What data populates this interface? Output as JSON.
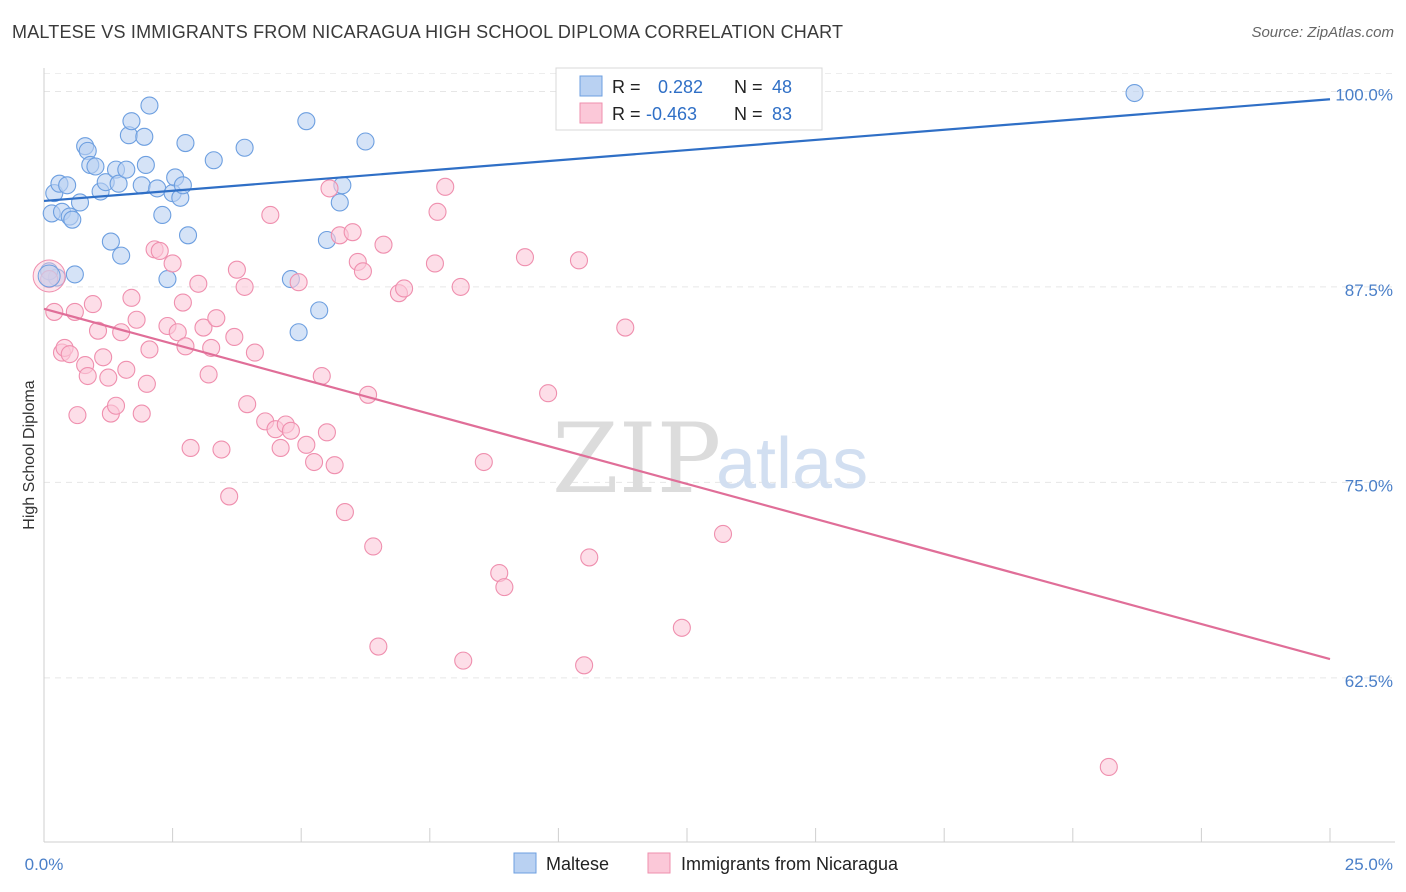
{
  "title": "MALTESE VS IMMIGRANTS FROM NICARAGUA HIGH SCHOOL DIPLOMA CORRELATION CHART",
  "source": "Source: ZipAtlas.com",
  "watermark": {
    "zip": "ZIP",
    "atlas": "atlas"
  },
  "legend": {
    "r_label": "R =",
    "n_label": "N =",
    "rows": [
      {
        "r": "0.282",
        "n": "48",
        "fill": "#b9d1f2",
        "stroke": "#6d9fe0"
      },
      {
        "r": "-0.463",
        "n": "83",
        "fill": "#fbc8d8",
        "stroke": "#ef8fae"
      }
    ]
  },
  "chart_data": {
    "type": "scatter",
    "title": "MALTESE VS IMMIGRANTS FROM NICARAGUA HIGH SCHOOL DIPLOMA CORRELATION CHART",
    "xlabel": "",
    "ylabel": "High School Diploma",
    "xlim": [
      0,
      25
    ],
    "ylim": [
      52,
      101.5
    ],
    "x_ticks": [
      "0.0%",
      "25.0%"
    ],
    "y_ticks": [
      {
        "value": 100,
        "label": "100.0%"
      },
      {
        "value": 87.5,
        "label": "87.5%"
      },
      {
        "value": 75,
        "label": "75.0%"
      },
      {
        "value": 62.5,
        "label": "62.5%"
      }
    ],
    "grid": true,
    "legend_position": "top-center",
    "series": [
      {
        "name": "Maltese",
        "color": "#6d9fe0",
        "fill": "#b9d1f2",
        "trend": {
          "x": [
            0,
            25
          ],
          "y": [
            93.0,
            99.5
          ],
          "color": "#2f6fc6"
        },
        "points": [
          [
            0.15,
            92.2
          ],
          [
            0.2,
            93.5
          ],
          [
            0.3,
            94.1
          ],
          [
            0.35,
            92.3
          ],
          [
            0.45,
            94.0
          ],
          [
            0.5,
            92.0
          ],
          [
            0.55,
            91.8
          ],
          [
            0.7,
            92.9
          ],
          [
            0.8,
            96.5
          ],
          [
            0.85,
            96.2
          ],
          [
            0.9,
            95.3
          ],
          [
            1.0,
            95.2
          ],
          [
            1.1,
            93.6
          ],
          [
            1.2,
            94.2
          ],
          [
            1.3,
            90.4
          ],
          [
            1.4,
            95.0
          ],
          [
            1.45,
            94.1
          ],
          [
            1.5,
            89.5
          ],
          [
            1.6,
            95.0
          ],
          [
            1.65,
            97.2
          ],
          [
            1.7,
            98.1
          ],
          [
            1.9,
            94.0
          ],
          [
            1.95,
            97.1
          ],
          [
            1.98,
            95.3
          ],
          [
            2.05,
            99.1
          ],
          [
            2.2,
            93.8
          ],
          [
            2.3,
            92.1
          ],
          [
            2.4,
            88.0
          ],
          [
            2.5,
            93.5
          ],
          [
            2.55,
            94.5
          ],
          [
            2.65,
            93.2
          ],
          [
            2.7,
            94.0
          ],
          [
            2.75,
            96.7
          ],
          [
            2.8,
            90.8
          ],
          [
            3.3,
            95.6
          ],
          [
            3.9,
            96.4
          ],
          [
            4.8,
            88.0
          ],
          [
            4.95,
            84.6
          ],
          [
            5.1,
            98.1
          ],
          [
            5.35,
            86.0
          ],
          [
            5.5,
            90.5
          ],
          [
            5.75,
            92.9
          ],
          [
            5.8,
            94.0
          ],
          [
            6.25,
            96.8
          ],
          [
            21.2,
            99.9
          ],
          [
            0.25,
            88.1
          ],
          [
            0.6,
            88.3
          ],
          [
            0.1,
            88.5
          ]
        ]
      },
      {
        "name": "Immigrants from Nicaragua",
        "color": "#ef8fae",
        "fill": "#fbc8d8",
        "trend": {
          "x": [
            0,
            25
          ],
          "y": [
            86.1,
            63.7
          ],
          "color": "#e06e98"
        },
        "points": [
          [
            0.1,
            88.0
          ],
          [
            0.2,
            85.9
          ],
          [
            0.35,
            83.3
          ],
          [
            0.4,
            83.6
          ],
          [
            0.5,
            83.2
          ],
          [
            0.6,
            85.9
          ],
          [
            0.65,
            79.3
          ],
          [
            0.8,
            82.5
          ],
          [
            0.85,
            81.8
          ],
          [
            0.95,
            86.4
          ],
          [
            1.05,
            84.7
          ],
          [
            1.15,
            83.0
          ],
          [
            1.25,
            81.7
          ],
          [
            1.3,
            79.4
          ],
          [
            1.4,
            79.9
          ],
          [
            1.5,
            84.6
          ],
          [
            1.6,
            82.2
          ],
          [
            1.7,
            86.8
          ],
          [
            1.8,
            85.4
          ],
          [
            1.9,
            79.4
          ],
          [
            2.0,
            81.3
          ],
          [
            2.05,
            83.5
          ],
          [
            2.15,
            89.9
          ],
          [
            2.25,
            89.8
          ],
          [
            2.4,
            85.0
          ],
          [
            2.5,
            89.0
          ],
          [
            2.6,
            84.6
          ],
          [
            2.7,
            86.5
          ],
          [
            2.75,
            83.7
          ],
          [
            2.85,
            77.2
          ],
          [
            3.0,
            87.7
          ],
          [
            3.1,
            84.9
          ],
          [
            3.2,
            81.9
          ],
          [
            3.25,
            83.6
          ],
          [
            3.35,
            85.5
          ],
          [
            3.45,
            77.1
          ],
          [
            3.6,
            74.1
          ],
          [
            3.7,
            84.3
          ],
          [
            3.75,
            88.6
          ],
          [
            3.9,
            87.5
          ],
          [
            3.95,
            80.0
          ],
          [
            4.1,
            83.3
          ],
          [
            4.3,
            78.9
          ],
          [
            4.5,
            78.4
          ],
          [
            4.4,
            92.1
          ],
          [
            4.6,
            77.2
          ],
          [
            4.7,
            78.7
          ],
          [
            4.8,
            78.3
          ],
          [
            4.95,
            87.8
          ],
          [
            5.1,
            77.4
          ],
          [
            5.25,
            76.3
          ],
          [
            5.4,
            81.8
          ],
          [
            5.5,
            78.2
          ],
          [
            5.55,
            93.8
          ],
          [
            5.65,
            76.1
          ],
          [
            5.75,
            90.8
          ],
          [
            5.85,
            73.1
          ],
          [
            6.0,
            91.0
          ],
          [
            6.1,
            89.1
          ],
          [
            6.2,
            88.5
          ],
          [
            6.3,
            80.6
          ],
          [
            6.4,
            70.9
          ],
          [
            6.5,
            64.5
          ],
          [
            6.6,
            90.2
          ],
          [
            6.9,
            87.1
          ],
          [
            7.0,
            87.4
          ],
          [
            7.6,
            89.0
          ],
          [
            7.65,
            92.3
          ],
          [
            7.8,
            93.9
          ],
          [
            8.1,
            87.5
          ],
          [
            8.15,
            63.6
          ],
          [
            8.55,
            76.3
          ],
          [
            8.85,
            69.2
          ],
          [
            8.95,
            68.3
          ],
          [
            9.35,
            89.4
          ],
          [
            9.8,
            80.7
          ],
          [
            10.4,
            89.2
          ],
          [
            10.5,
            63.3
          ],
          [
            10.6,
            70.2
          ],
          [
            11.3,
            84.9
          ],
          [
            12.4,
            65.7
          ],
          [
            13.2,
            71.7
          ],
          [
            20.7,
            56.8
          ]
        ]
      }
    ]
  },
  "bottom_legend": [
    {
      "label": "Maltese",
      "fill": "#b9d1f2",
      "stroke": "#6d9fe0"
    },
    {
      "label": "Immigrants from Nicaragua",
      "fill": "#fbc8d8",
      "stroke": "#ef8fae"
    }
  ]
}
